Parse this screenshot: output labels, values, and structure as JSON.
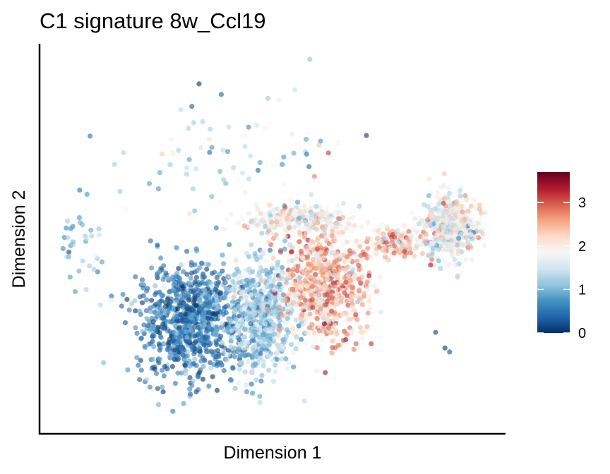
{
  "chart_data": {
    "type": "scatter",
    "title": "C1 signature 8w_Ccl19",
    "xlabel": "Dimension 1",
    "ylabel": "Dimension 2",
    "xlim": [
      0,
      10
    ],
    "ylim": [
      0,
      10
    ],
    "axis_ticks_shown": false,
    "grid": false,
    "legend": {
      "type": "colorbar",
      "placement": "right",
      "range": [
        0,
        3.7
      ],
      "ticks": [
        "0",
        "1",
        "2",
        "3"
      ],
      "tick_values": [
        0,
        1,
        2,
        3
      ],
      "colormap": "RdBu_r",
      "colors": [
        "#053061",
        "#2166ac",
        "#4393c3",
        "#92c5de",
        "#d1e5f0",
        "#f7f7f7",
        "#fddbc7",
        "#f4a582",
        "#d6604d",
        "#b2182b",
        "#67001f"
      ]
    },
    "point_opacity": 0.6,
    "clusters": [
      {
        "label": "main body, left (low)",
        "center": [
          3.2,
          2.9
        ],
        "spread": [
          1.0,
          1.3
        ],
        "n": 900,
        "value_mean": 0.5,
        "value_sd": 0.35
      },
      {
        "label": "main body, middle",
        "center": [
          4.7,
          3.0
        ],
        "spread": [
          0.7,
          1.3
        ],
        "n": 700,
        "value_mean": 1.2,
        "value_sd": 0.4
      },
      {
        "label": "main body, right (high)",
        "center": [
          6.1,
          3.8
        ],
        "spread": [
          0.8,
          1.2
        ],
        "n": 800,
        "value_mean": 2.4,
        "value_sd": 0.5
      },
      {
        "label": "upper ridge",
        "center": [
          5.5,
          5.5
        ],
        "spread": [
          1.0,
          0.35
        ],
        "n": 250,
        "value_mean": 1.9,
        "value_sd": 0.45
      },
      {
        "label": "bridge",
        "center": [
          7.6,
          4.9
        ],
        "spread": [
          0.6,
          0.35
        ],
        "n": 160,
        "value_mean": 2.3,
        "value_sd": 0.5
      },
      {
        "label": "right blob",
        "center": [
          8.8,
          5.3
        ],
        "spread": [
          0.5,
          0.75
        ],
        "n": 480,
        "value_mean": 1.8,
        "value_sd": 0.5
      },
      {
        "label": "scattered upper",
        "center": [
          4.0,
          7.0
        ],
        "spread": [
          2.6,
          1.4
        ],
        "n": 70,
        "value_mean": 1.2,
        "value_sd": 0.5
      },
      {
        "label": "scattered left",
        "center": [
          0.9,
          4.8
        ],
        "spread": [
          0.5,
          1.1
        ],
        "n": 40,
        "value_mean": 1.0,
        "value_sd": 0.4
      }
    ],
    "extra_points": [
      {
        "x": 5.9,
        "y": 6.6,
        "value": 2.8
      },
      {
        "x": 6.2,
        "y": 7.2,
        "value": 3.2
      },
      {
        "x": 6.0,
        "y": 7.4,
        "value": 2.4
      },
      {
        "x": 8.5,
        "y": 2.6,
        "value": 0.1
      },
      {
        "x": 8.8,
        "y": 2.1,
        "value": 0.2
      },
      {
        "x": 8.7,
        "y": 2.2,
        "value": 0.0
      },
      {
        "x": 3.9,
        "y": 8.7,
        "value": 0.3
      },
      {
        "x": 5.8,
        "y": 9.6,
        "value": 1.1
      },
      {
        "x": 4.9,
        "y": 8.6,
        "value": 1.1
      },
      {
        "x": 3.5,
        "y": 8.0,
        "value": 1.3
      }
    ]
  }
}
